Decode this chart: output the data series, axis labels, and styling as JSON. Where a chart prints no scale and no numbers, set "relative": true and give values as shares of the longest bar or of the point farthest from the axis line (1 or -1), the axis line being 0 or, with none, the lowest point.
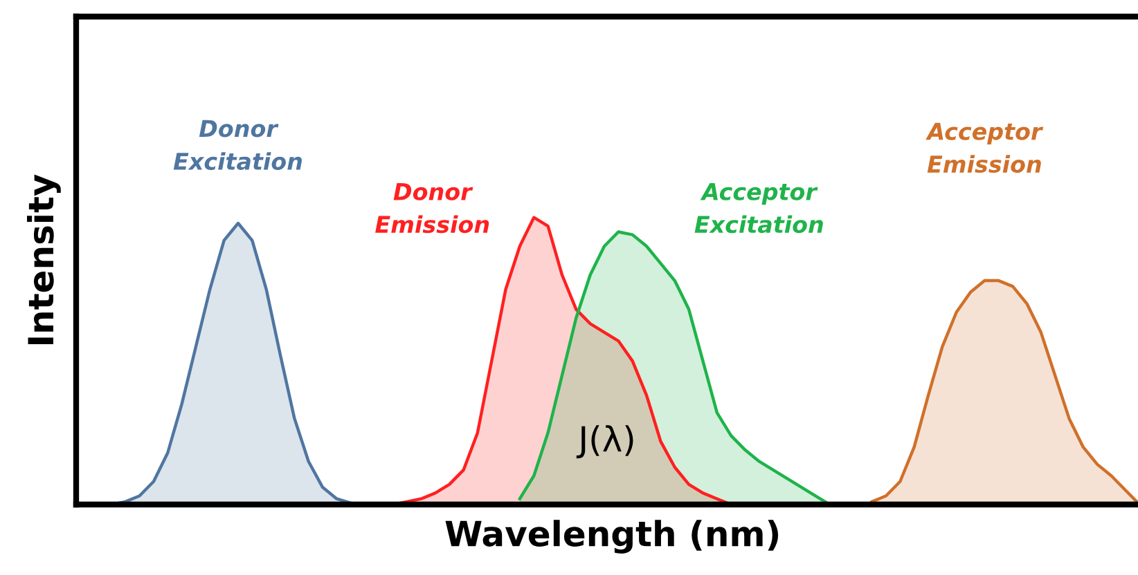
{
  "chart_data": {
    "type": "area",
    "relative": true,
    "xlabel": "Wavelength (nm)",
    "ylabel": "Intensity",
    "tick_labels": false,
    "categories": [
      null,
      null,
      null,
      null,
      null,
      null,
      null,
      null,
      null,
      null,
      null,
      null,
      null,
      null,
      null,
      null,
      null,
      null,
      null,
      null,
      null,
      null,
      null,
      null,
      null,
      null,
      null,
      null,
      null,
      null,
      null,
      null,
      null,
      null,
      null,
      null,
      null,
      null,
      null,
      null,
      null,
      null,
      null,
      null,
      null,
      null,
      null,
      null,
      null,
      null,
      null,
      null,
      null,
      null,
      null,
      null,
      null,
      null,
      null,
      null,
      null,
      null,
      null,
      null,
      null,
      null,
      null,
      null,
      null,
      null,
      null,
      null,
      null,
      null,
      null,
      null
    ],
    "series": [
      {
        "name": "Donor\nExcitation",
        "color": "#4f76a0",
        "values": [
          null,
          null,
          0,
          0.01,
          0.03,
          0.08,
          0.18,
          0.35,
          0.55,
          0.75,
          0.92,
          0.98,
          0.92,
          0.75,
          0.52,
          0.3,
          0.15,
          0.06,
          0.02,
          0.005,
          0,
          null,
          null,
          null,
          null,
          null,
          null,
          null,
          null,
          null,
          null,
          null,
          null,
          null,
          null,
          null,
          null,
          null,
          null,
          null,
          null,
          null,
          null,
          null,
          null,
          null,
          null,
          null,
          null,
          null,
          null,
          null,
          null,
          null,
          null,
          null,
          null,
          null,
          null,
          null,
          null,
          null,
          null,
          null,
          null,
          null,
          null,
          null,
          null,
          null,
          null,
          null,
          null,
          null,
          null,
          null
        ]
      },
      {
        "name": "Donor\nEmission",
        "color": "#ff2020",
        "values": [
          null,
          null,
          null,
          null,
          null,
          null,
          null,
          null,
          null,
          null,
          null,
          null,
          null,
          null,
          null,
          null,
          null,
          null,
          null,
          null,
          null,
          null,
          0,
          0.01,
          0.02,
          0.04,
          0.07,
          0.12,
          0.25,
          0.5,
          0.75,
          0.9,
          1,
          0.97,
          0.8,
          0.68,
          0.63,
          0.6,
          0.57,
          0.5,
          0.38,
          0.22,
          0.13,
          0.07,
          0.04,
          0.02,
          0,
          null,
          null,
          null,
          null,
          null,
          null,
          null,
          null,
          null,
          null,
          null,
          null,
          null,
          null,
          null,
          null,
          null,
          null,
          null,
          null,
          null,
          null,
          null,
          null,
          null,
          null,
          null,
          null,
          null
        ]
      },
      {
        "name": "Acceptor\nExcitation",
        "color": "#1fb34a",
        "values": [
          null,
          null,
          null,
          null,
          null,
          null,
          null,
          null,
          null,
          null,
          null,
          null,
          null,
          null,
          null,
          null,
          null,
          null,
          null,
          null,
          null,
          null,
          null,
          null,
          null,
          null,
          null,
          null,
          null,
          null,
          null,
          0.02,
          0.1,
          0.25,
          0.45,
          0.65,
          0.8,
          0.9,
          0.95,
          0.94,
          0.9,
          0.84,
          0.78,
          0.68,
          0.5,
          0.32,
          0.24,
          0.19,
          0.15,
          0.12,
          0.09,
          0.06,
          0.03,
          0,
          null,
          null,
          null,
          null,
          null,
          null,
          null,
          null,
          null,
          null,
          null,
          null,
          null,
          null,
          null,
          null,
          null,
          null,
          null,
          null,
          null,
          null
        ]
      },
      {
        "name": "Acceptor\nEmission",
        "color": "#d0702a",
        "values": [
          null,
          null,
          null,
          null,
          null,
          null,
          null,
          null,
          null,
          null,
          null,
          null,
          null,
          null,
          null,
          null,
          null,
          null,
          null,
          null,
          null,
          null,
          null,
          null,
          null,
          null,
          null,
          null,
          null,
          null,
          null,
          null,
          null,
          null,
          null,
          null,
          null,
          null,
          null,
          null,
          null,
          null,
          null,
          null,
          null,
          null,
          null,
          null,
          null,
          null,
          null,
          null,
          null,
          null,
          null,
          null,
          0.01,
          0.03,
          0.08,
          0.2,
          0.38,
          0.55,
          0.67,
          0.74,
          0.78,
          0.78,
          0.76,
          0.7,
          0.6,
          0.45,
          0.3,
          0.2,
          0.14,
          0.1,
          0.05,
          0
        ]
      }
    ],
    "annotations": [
      "J(λ)"
    ]
  }
}
